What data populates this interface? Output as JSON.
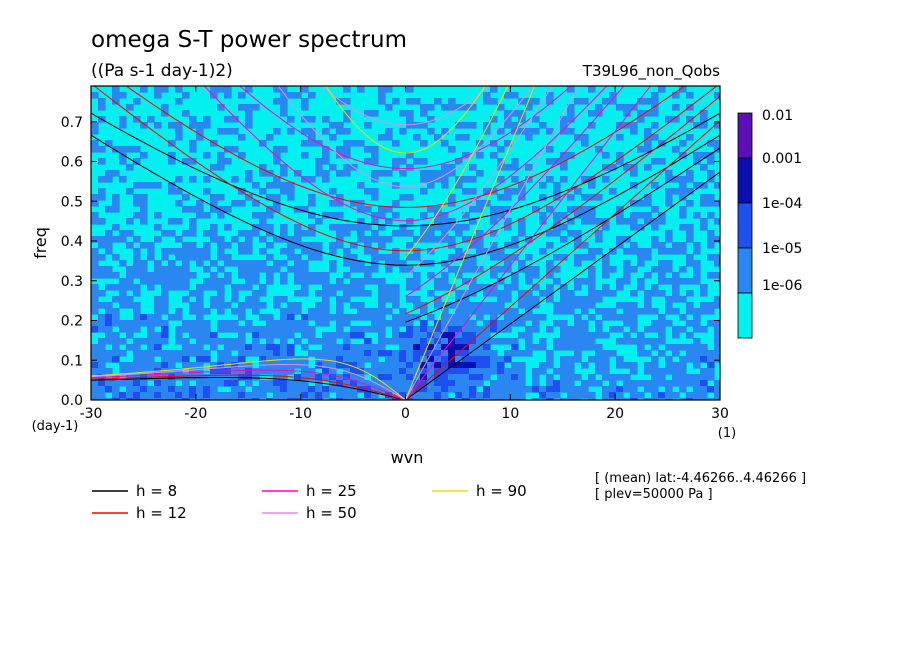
{
  "chart_data": {
    "type": "heatmap",
    "title": "omega S-T power spectrum",
    "units": "((Pa s-1 day-1)2)",
    "run_name": "T39L96_non_Qobs",
    "xlabel": "wvn",
    "ylabel": "freq",
    "x_unit": "(1)",
    "y_unit": "(day-1)",
    "xlim": [
      -30,
      30
    ],
    "ylim": [
      0,
      0.79
    ],
    "x_ticks": [
      -30,
      -20,
      -10,
      0,
      10,
      20,
      30
    ],
    "y_ticks": [
      0.0,
      0.1,
      0.2,
      0.3,
      0.4,
      0.5,
      0.6,
      0.7
    ],
    "colorbar": {
      "levels": [
        "0.01",
        "0.001",
        "1e-04",
        "1e-05",
        "1e-06"
      ],
      "colors": [
        "#5a10b4",
        "#0a10b0",
        "#1e4ff0",
        "#2a86f0",
        "#00f0f0"
      ]
    },
    "field_description": "power contoured between 1e-06 and 1e-03; maximum near wvn 3-6, freq 0.1",
    "annotation_lines": [
      "[ (mean) lat:-4.46266..4.46266 ]",
      "[ plev=50000 Pa ]"
    ],
    "dispersion_curves": [
      {
        "label": "h =  8",
        "h": 8,
        "color": "#000000"
      },
      {
        "label": "h = 12",
        "h": 12,
        "color": "#ff0000"
      },
      {
        "label": "h = 25",
        "h": 25,
        "color": "#ff00c8"
      },
      {
        "label": "h = 50",
        "h": 50,
        "color": "#d890f0"
      },
      {
        "label": "h = 90",
        "h": 90,
        "color": "#e8e000"
      }
    ]
  }
}
